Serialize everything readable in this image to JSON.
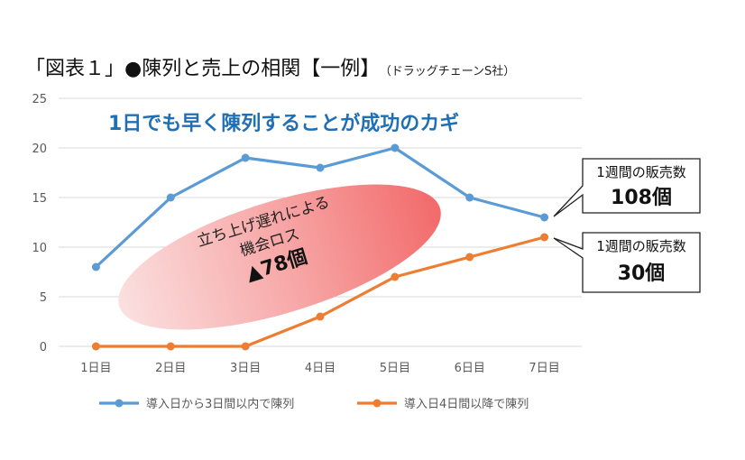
{
  "title": "「図表１」●陳列と売上の相関【一例】",
  "subtitle": "（ドラッグチェーンS社）",
  "headline": "1日でも早く陳列することが成功のカギ",
  "ellipse_note": {
    "line1": "立ち上げ遅れによる",
    "line2": "機会ロス",
    "value": "▲78個"
  },
  "callouts": [
    {
      "line1": "1週間の販売数",
      "line2": "108個"
    },
    {
      "line1": "1週間の販売数",
      "line2": "30個"
    }
  ],
  "colors": {
    "series1": "#5B9BD5",
    "series2": "#ED7D31",
    "headline": "#1F6FB5",
    "grid": "#D9D9D9"
  },
  "chart_data": {
    "type": "line",
    "categories": [
      "1日目",
      "2日目",
      "3日目",
      "4日目",
      "5日目",
      "6日目",
      "7日目"
    ],
    "series": [
      {
        "name": "導入日から3日間以内で陳列",
        "values": [
          8,
          15,
          19,
          18,
          20,
          15,
          13
        ]
      },
      {
        "name": "導入日4日間以降で陳列",
        "values": [
          0,
          0,
          0,
          3,
          7,
          9,
          11
        ]
      }
    ],
    "ylim": [
      0,
      25
    ],
    "yticks": [
      0,
      5,
      10,
      15,
      20,
      25
    ],
    "grid": true,
    "legend_position": "bottom"
  }
}
